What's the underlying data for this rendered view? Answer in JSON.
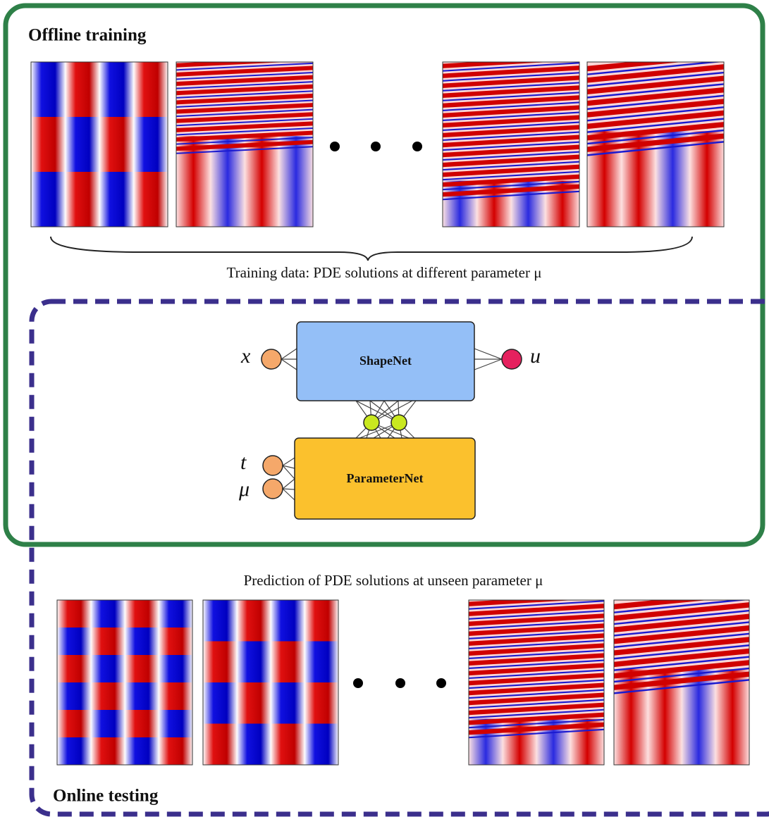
{
  "training": {
    "title": "Offline training",
    "caption": "Training data: PDE solutions at different parameter μ"
  },
  "network": {
    "shape_net": "ShapeNet",
    "parameter_net": "ParameterNet",
    "inputs": [
      "x",
      "t",
      "μ"
    ],
    "output": "u"
  },
  "testing": {
    "caption": "Prediction of PDE solutions at unseen parameter μ",
    "title": "Online testing"
  }
}
